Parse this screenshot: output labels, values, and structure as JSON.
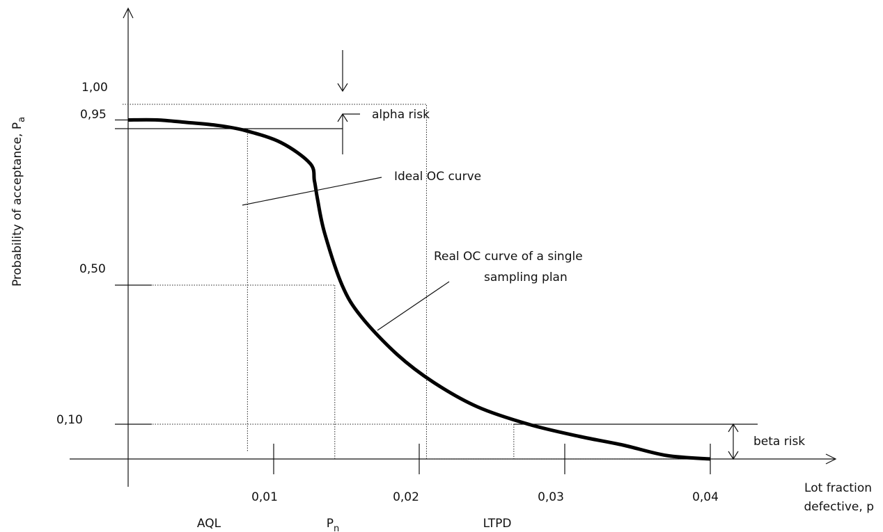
{
  "chart_data": {
    "type": "line",
    "title": "",
    "xlabel": "Lot fraction defective, p",
    "xlabel_lines": [
      "Lot fraction",
      "defective, p"
    ],
    "ylabel": "Probability of acceptance, P",
    "ylabel_subscript": "a",
    "x_ticks": [
      {
        "value": 0.01,
        "label": "0,01"
      },
      {
        "value": 0.02,
        "label": "0,02"
      },
      {
        "value": 0.03,
        "label": "0,03"
      },
      {
        "value": 0.04,
        "label": "0,04"
      }
    ],
    "y_ticks": [
      {
        "value": 1.0,
        "label": "1,00"
      },
      {
        "value": 0.95,
        "label": "0,95"
      },
      {
        "value": 0.5,
        "label": "0,50"
      },
      {
        "value": 0.1,
        "label": "0,10"
      }
    ],
    "xlim": [
      0,
      0.04
    ],
    "ylim": [
      0,
      1
    ],
    "grid": false,
    "legend": "none",
    "series": [
      {
        "x": [
          0.0,
          0.002,
          0.004,
          0.006,
          0.008,
          0.0105,
          0.0125,
          0.0128,
          0.013,
          0.0135,
          0.0147,
          0.016,
          0.0185,
          0.021,
          0.024,
          0.0275,
          0.031,
          0.034,
          0.037,
          0.04
        ],
        "y": [
          0.975,
          0.975,
          0.968,
          0.96,
          0.945,
          0.91,
          0.85,
          0.8,
          0.75,
          0.65,
          0.5,
          0.41,
          0.3,
          0.22,
          0.15,
          0.1,
          0.065,
          0.04,
          0.01,
          0.0
        ]
      }
    ],
    "reference_values": {
      "AQL": 0.0082,
      "Pn": 0.0142,
      "LTPD": 0.0265,
      "ideal_cutoff": 0.0205,
      "alpha_level": 0.95,
      "beta_level": 0.1
    },
    "annotations": {
      "aql": "AQL",
      "pn_main": "P",
      "pn_sub": "n",
      "ltpd": "LTPD",
      "alpha": "alpha risk",
      "beta": "beta risk",
      "ideal": "Ideal OC curve",
      "real_line1": "Real OC curve of a single",
      "real_line2": "sampling plan"
    }
  }
}
